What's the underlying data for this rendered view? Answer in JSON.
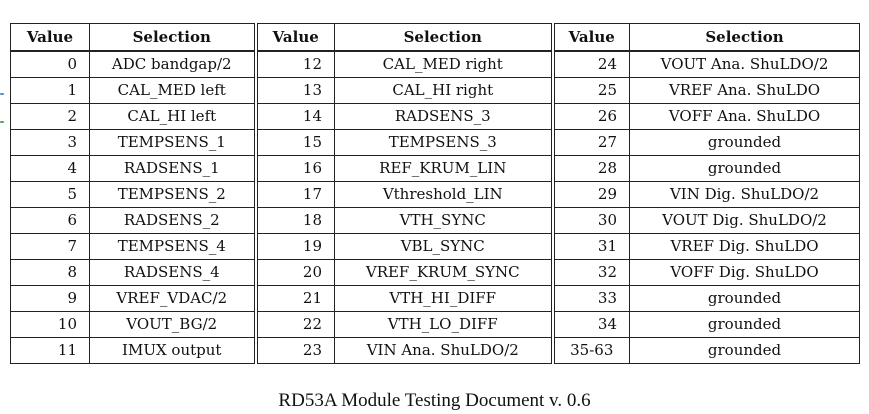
{
  "table": {
    "headers": [
      "Value",
      "Selection",
      "Value",
      "Selection",
      "Value",
      "Selection"
    ],
    "rows": [
      [
        [
          "0",
          "ADC bandgap/2"
        ],
        [
          "12",
          "CAL_MED right"
        ],
        [
          "24",
          "VOUT Ana. ShuLDO/2"
        ]
      ],
      [
        [
          "1",
          "CAL_MED left"
        ],
        [
          "13",
          "CAL_HI right"
        ],
        [
          "25",
          "VREF Ana. ShuLDO"
        ]
      ],
      [
        [
          "2",
          "CAL_HI left"
        ],
        [
          "14",
          "RADSENS_3"
        ],
        [
          "26",
          "VOFF Ana. ShuLDO"
        ]
      ],
      [
        [
          "3",
          "TEMPSENS_1"
        ],
        [
          "15",
          "TEMPSENS_3"
        ],
        [
          "27",
          "grounded"
        ]
      ],
      [
        [
          "4",
          "RADSENS_1"
        ],
        [
          "16",
          "REF_KRUM_LIN"
        ],
        [
          "28",
          "grounded"
        ]
      ],
      [
        [
          "5",
          "TEMPSENS_2"
        ],
        [
          "17",
          "Vthreshold_LIN"
        ],
        [
          "29",
          "VIN Dig. ShuLDO/2"
        ]
      ],
      [
        [
          "6",
          "RADSENS_2"
        ],
        [
          "18",
          "VTH_SYNC"
        ],
        [
          "30",
          "VOUT Dig. ShuLDO/2"
        ]
      ],
      [
        [
          "7",
          "TEMPSENS_4"
        ],
        [
          "19",
          "VBL_SYNC"
        ],
        [
          "31",
          "VREF Dig. ShuLDO"
        ]
      ],
      [
        [
          "8",
          "RADSENS_4"
        ],
        [
          "20",
          "VREF_KRUM_SYNC"
        ],
        [
          "32",
          "VOFF Dig. ShuLDO"
        ]
      ],
      [
        [
          "9",
          "VREF_VDAC/2"
        ],
        [
          "21",
          "VTH_HI_DIFF"
        ],
        [
          "33",
          "grounded"
        ]
      ],
      [
        [
          "10",
          "VOUT_BG/2"
        ],
        [
          "22",
          "VTH_LO_DIFF"
        ],
        [
          "34",
          "grounded"
        ]
      ],
      [
        [
          "11",
          "IMUX output"
        ],
        [
          "23",
          "VIN Ana. ShuLDO/2"
        ],
        [
          "35-63",
          "grounded"
        ]
      ]
    ]
  },
  "caption": "RD53A  Module Testing Document v. 0.6",
  "colors": {
    "edge_mark_blue": "#4a8fd0",
    "edge_mark_green": "#5aa05a"
  }
}
